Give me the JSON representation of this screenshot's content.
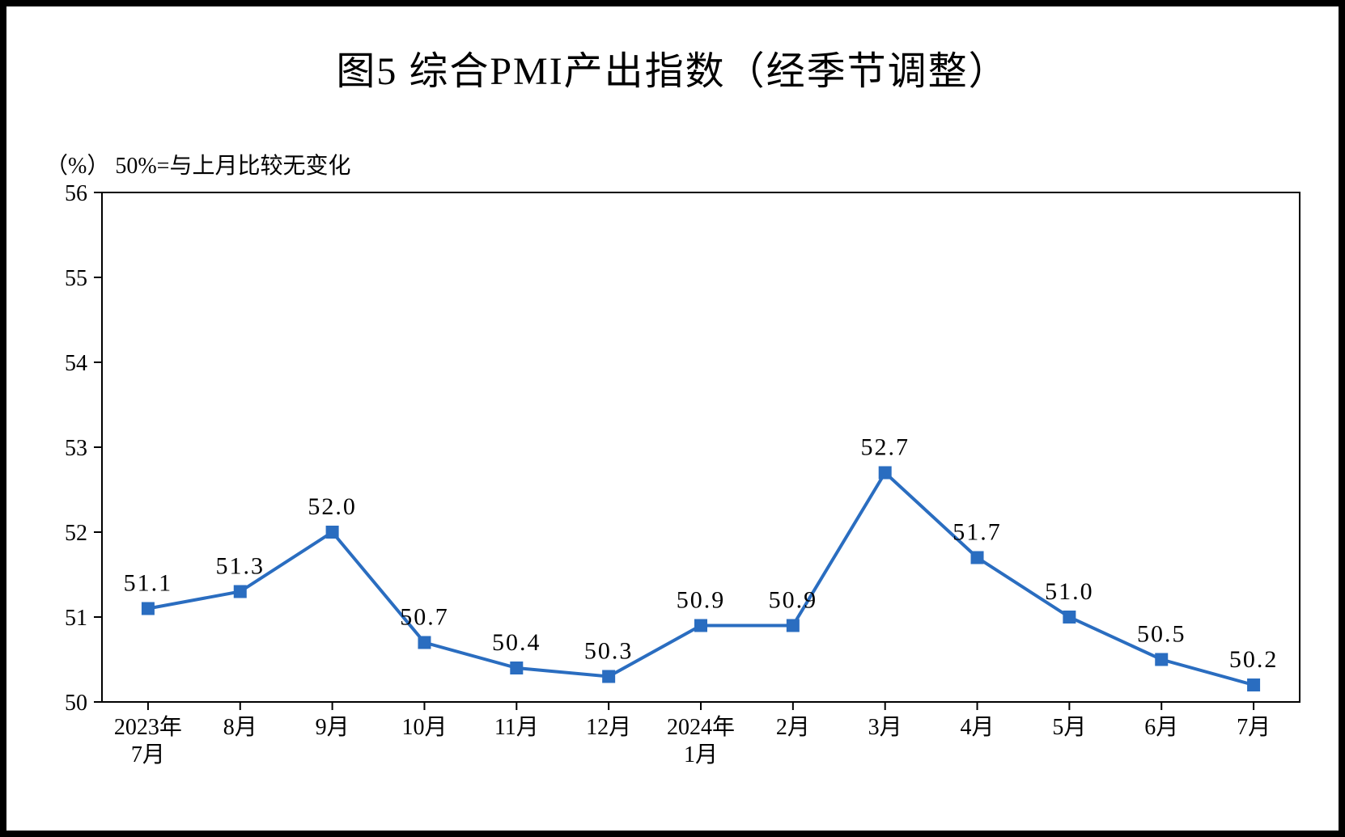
{
  "chart": {
    "type": "line",
    "title": "图5 综合PMI产出指数（经季节调整）",
    "subtitle_left": "（%）",
    "subtitle_right": "50%=与上月比较无变化",
    "title_fontsize": 48,
    "subtitle_fontsize": 28,
    "background_color": "#ffffff",
    "border_color": "#000000",
    "line_color": "#2a6dc0",
    "marker_fill": "#2a6dc0",
    "marker_stroke": "#2a6dc0",
    "marker_size": 7,
    "line_width": 4,
    "axis_color": "#000000",
    "text_color": "#000000",
    "label_fontsize": 30,
    "tick_fontsize": 28,
    "ylim": [
      50,
      56
    ],
    "ytick_step": 1,
    "yticks": [
      50,
      51,
      52,
      53,
      54,
      55,
      56
    ],
    "categories": [
      "2023年\n7月",
      "8月",
      "9月",
      "10月",
      "11月",
      "12月",
      "2024年\n1月",
      "2月",
      "3月",
      "4月",
      "5月",
      "6月",
      "7月"
    ],
    "values": [
      51.1,
      51.3,
      52.0,
      50.7,
      50.4,
      50.3,
      50.9,
      50.9,
      52.7,
      51.7,
      51.0,
      50.5,
      50.2
    ],
    "value_labels": [
      "51.1",
      "51.3",
      "52.0",
      "50.7",
      "50.4",
      "50.3",
      "50.9",
      "50.9",
      "52.7",
      "51.7",
      "51.0",
      "50.5",
      "50.2"
    ],
    "grid": false
  }
}
